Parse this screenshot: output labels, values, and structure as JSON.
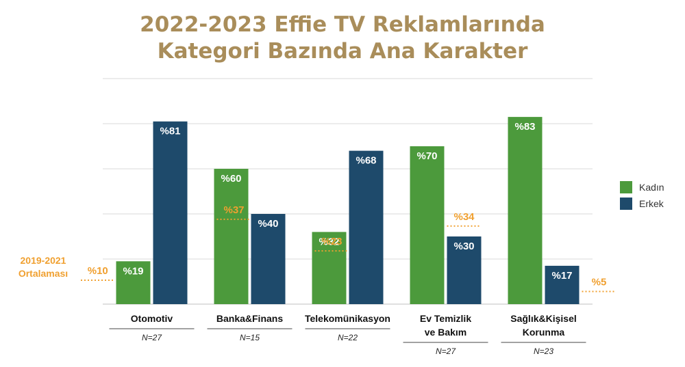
{
  "title_line1": "2022-2023 Effie TV Reklamlarında",
  "title_line2": "Kategori Bazında Ana Karakter",
  "colors": {
    "kadin": "#4c9a3c",
    "erkek": "#1e4a6b",
    "average": "#f0a030",
    "title": "#a98d5a"
  },
  "average_label_line1": "2019-2021",
  "average_label_line2": "Ortalaması",
  "chart_data": {
    "type": "bar",
    "title": "2022-2023 Effie TV Reklamlarında Kategori Bazında Ana Karakter",
    "categories": [
      {
        "lines": [
          "Otomotiv"
        ],
        "n": "N=27"
      },
      {
        "lines": [
          "Banka&Finans"
        ],
        "n": "N=15"
      },
      {
        "lines": [
          "Telekomünikasyon"
        ],
        "n": "N=22"
      },
      {
        "lines": [
          "Ev Temizlik",
          "ve Bakım"
        ],
        "n": "N=27"
      },
      {
        "lines": [
          "Sağlık&Kişisel",
          "Korunma"
        ],
        "n": "N=23"
      }
    ],
    "series": [
      {
        "name": "Kadın",
        "values": [
          19,
          60,
          32,
          70,
          83
        ],
        "labels": [
          "%19",
          "%60",
          "%32",
          "%70",
          "%83"
        ]
      },
      {
        "name": "Erkek",
        "values": [
          81,
          40,
          68,
          30,
          17
        ],
        "labels": [
          "%81",
          "%40",
          "%68",
          "%30",
          "%17"
        ]
      }
    ],
    "averages_2019_2021": [
      10,
      37,
      23,
      34,
      5
    ],
    "average_labels": [
      "%10",
      "%37",
      "%23",
      "%34",
      "%5"
    ],
    "ylim": [
      0,
      100
    ],
    "grid": true,
    "legend": "right"
  }
}
